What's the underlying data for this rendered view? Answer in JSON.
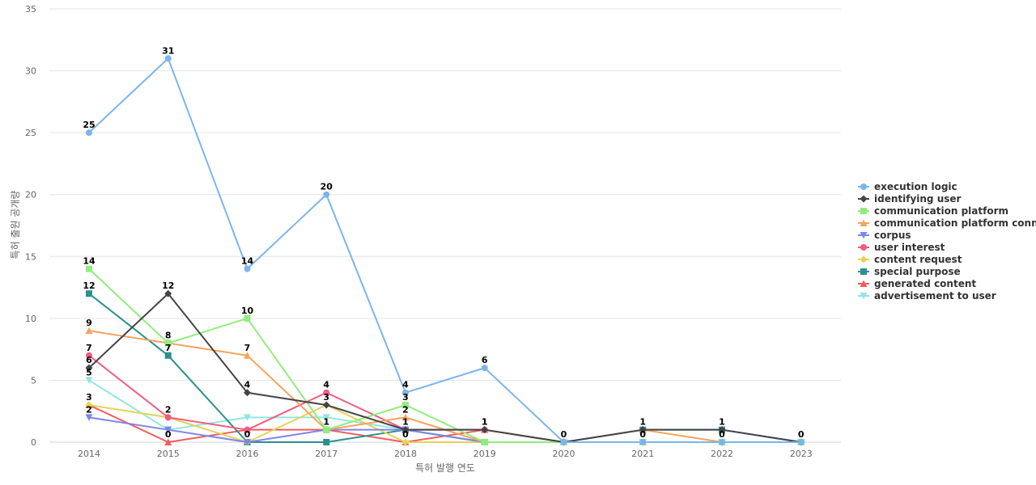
{
  "chart_data": {
    "type": "line",
    "xlabel": "특허 발행 연도",
    "ylabel": "특허 출원 공개량",
    "x": [
      "2014",
      "2015",
      "2016",
      "2017",
      "2018",
      "2019",
      "2020",
      "2021",
      "2022",
      "2023"
    ],
    "ylim": [
      0,
      35
    ],
    "yticks": [
      0,
      5,
      10,
      15,
      20,
      25,
      30,
      35
    ],
    "grid": true,
    "legend_position": "right",
    "series": [
      {
        "name": "execution logic",
        "color": "#7cb5ec",
        "marker": "circle",
        "values": [
          25,
          31,
          14,
          20,
          4,
          6,
          0,
          0,
          0,
          0
        ]
      },
      {
        "name": "identifying user",
        "color": "#434348",
        "marker": "diamond",
        "values": [
          6,
          12,
          4,
          3,
          1,
          1,
          0,
          1,
          1,
          0
        ]
      },
      {
        "name": "communication platform",
        "color": "#90ed7d",
        "marker": "square",
        "values": [
          14,
          8,
          10,
          1,
          3,
          0,
          0,
          0,
          0,
          0
        ]
      },
      {
        "name": "communication platform conn...",
        "color": "#f7a35c",
        "marker": "triangle",
        "values": [
          9,
          8,
          7,
          1,
          2,
          0,
          0,
          1,
          0,
          0
        ]
      },
      {
        "name": "corpus",
        "color": "#8085e9",
        "marker": "triangle-down",
        "values": [
          2,
          1,
          0,
          1,
          1,
          0,
          0,
          0,
          0,
          0
        ]
      },
      {
        "name": "user interest",
        "color": "#f15c80",
        "marker": "circle",
        "values": [
          7,
          2,
          1,
          4,
          1,
          1,
          0,
          0,
          0,
          0
        ]
      },
      {
        "name": "content request",
        "color": "#e4d354",
        "marker": "diamond",
        "values": [
          3,
          2,
          0,
          3,
          0,
          0,
          0,
          0,
          0,
          0
        ]
      },
      {
        "name": "special purpose",
        "color": "#2b908f",
        "marker": "square",
        "values": [
          12,
          7,
          0,
          0,
          1,
          0,
          0,
          1,
          1,
          0
        ]
      },
      {
        "name": "generated content",
        "color": "#f45b5b",
        "marker": "triangle",
        "values": [
          3,
          0,
          1,
          1,
          0,
          1,
          0,
          0,
          0,
          0
        ]
      },
      {
        "name": "advertisement to user",
        "color": "#91e8e1",
        "marker": "triangle-down",
        "values": [
          5,
          1,
          2,
          2,
          1,
          0,
          0,
          0,
          0,
          0
        ]
      }
    ],
    "data_labels": [
      {
        "series": 0,
        "x": 0
      },
      {
        "series": 0,
        "x": 1
      },
      {
        "series": 0,
        "x": 2
      },
      {
        "series": 0,
        "x": 3
      },
      {
        "series": 0,
        "x": 4
      },
      {
        "series": 0,
        "x": 5
      },
      {
        "series": 0,
        "x": 6
      },
      {
        "series": 0,
        "x": 7
      },
      {
        "series": 0,
        "x": 8
      },
      {
        "series": 0,
        "x": 9
      },
      {
        "series": 1,
        "x": 0
      },
      {
        "series": 1,
        "x": 1
      },
      {
        "series": 1,
        "x": 2
      },
      {
        "series": 1,
        "x": 3
      },
      {
        "series": 1,
        "x": 4
      },
      {
        "series": 1,
        "x": 5
      },
      {
        "series": 1,
        "x": 7
      },
      {
        "series": 1,
        "x": 8
      },
      {
        "series": 2,
        "x": 0
      },
      {
        "series": 2,
        "x": 1
      },
      {
        "series": 2,
        "x": 2
      },
      {
        "series": 2,
        "x": 3
      },
      {
        "series": 2,
        "x": 4
      },
      {
        "series": 3,
        "x": 0
      },
      {
        "series": 3,
        "x": 2
      },
      {
        "series": 3,
        "x": 4
      },
      {
        "series": 4,
        "x": 0
      },
      {
        "series": 5,
        "x": 0
      },
      {
        "series": 5,
        "x": 1
      },
      {
        "series": 5,
        "x": 3
      },
      {
        "series": 6,
        "x": 0
      },
      {
        "series": 6,
        "x": 2
      },
      {
        "series": 7,
        "x": 0
      },
      {
        "series": 7,
        "x": 1
      },
      {
        "series": 8,
        "x": 1
      },
      {
        "series": 8,
        "x": 3
      },
      {
        "series": 8,
        "x": 4
      },
      {
        "series": 8,
        "x": 5
      },
      {
        "series": 9,
        "x": 0
      }
    ]
  }
}
